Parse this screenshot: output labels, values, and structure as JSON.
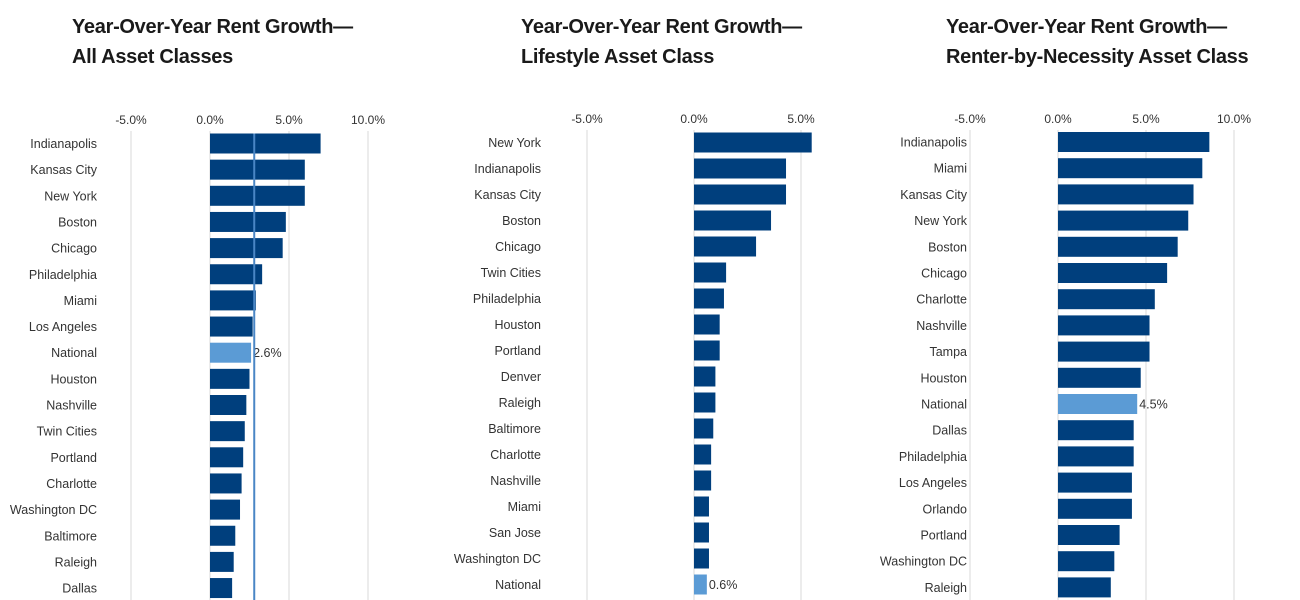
{
  "colors": {
    "bar": "#003f7d",
    "national": "#5b9bd5",
    "grid": "#d9d9d9",
    "ref_line": "#4a86c5",
    "text": "#333333"
  },
  "chart_data": [
    {
      "type": "bar",
      "orientation": "horizontal",
      "title": [
        "Year-Over-Year Rent Growth—",
        "All Asset Classes"
      ],
      "ticks": [
        "-5.0%",
        "0.0%",
        "5.0%",
        "10.0%"
      ],
      "tick_values": [
        -5,
        0,
        5,
        10
      ],
      "xlim": [
        -5,
        10
      ],
      "categories": [
        "Indianapolis",
        "Kansas City",
        "New York",
        "Boston",
        "Chicago",
        "Philadelphia",
        "Miami",
        "Los Angeles",
        "National",
        "Houston",
        "Nashville",
        "Twin Cities",
        "Portland",
        "Charlotte",
        "Washington DC",
        "Baltimore",
        "Raleigh",
        "Dallas"
      ],
      "values": [
        7.0,
        6.0,
        6.0,
        4.8,
        4.6,
        3.3,
        2.9,
        2.7,
        2.6,
        2.5,
        2.3,
        2.2,
        2.1,
        2.0,
        1.9,
        1.6,
        1.5,
        1.4
      ],
      "highlight": "National",
      "highlight_label": "2.6%",
      "reference_line": 2.8
    },
    {
      "type": "bar",
      "orientation": "horizontal",
      "title": [
        "Year-Over-Year Rent Growth—",
        "Lifestyle Asset Class"
      ],
      "ticks": [
        "-5.0%",
        "0.0%",
        "5.0%"
      ],
      "tick_values": [
        -5,
        0,
        5
      ],
      "xlim": [
        -5,
        6.5
      ],
      "categories": [
        "New York",
        "Indianapolis",
        "Kansas City",
        "Boston",
        "Chicago",
        "Twin Cities",
        "Philadelphia",
        "Houston",
        "Portland",
        "Denver",
        "Raleigh",
        "Baltimore",
        "Charlotte",
        "Nashville",
        "Miami",
        "San Jose",
        "Washington DC",
        "National"
      ],
      "values": [
        5.5,
        4.3,
        4.3,
        3.6,
        2.9,
        1.5,
        1.4,
        1.2,
        1.2,
        1.0,
        1.0,
        0.9,
        0.8,
        0.8,
        0.7,
        0.7,
        0.7,
        0.6
      ],
      "highlight": "National",
      "highlight_label": "0.6%"
    },
    {
      "type": "bar",
      "orientation": "horizontal",
      "title": [
        "Year-Over-Year Rent Growth—",
        "Renter-by-Necessity Asset Class"
      ],
      "ticks": [
        "-5.0%",
        "0.0%",
        "5.0%",
        "10.0%"
      ],
      "tick_values": [
        -5,
        0,
        5,
        10
      ],
      "xlim": [
        -5,
        10.5
      ],
      "categories": [
        "Indianapolis",
        "Miami",
        "Kansas City",
        "New York",
        "Boston",
        "Chicago",
        "Charlotte",
        "Nashville",
        "Tampa",
        "Houston",
        "National",
        "Dallas",
        "Philadelphia",
        "Los Angeles",
        "Orlando",
        "Portland",
        "Washington DC",
        "Raleigh"
      ],
      "values": [
        8.6,
        8.2,
        7.7,
        7.4,
        6.8,
        6.2,
        5.5,
        5.2,
        5.2,
        4.7,
        4.5,
        4.3,
        4.3,
        4.2,
        4.2,
        3.5,
        3.2,
        3.0
      ],
      "highlight": "National",
      "highlight_label": "4.5%"
    }
  ]
}
